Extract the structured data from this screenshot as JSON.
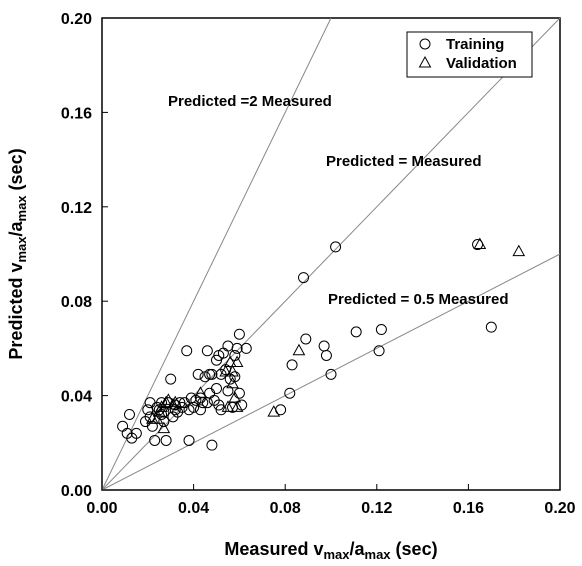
{
  "chart_data": {
    "type": "scatter",
    "xlabel": {
      "main": "Measured v",
      "sub1": "max",
      "mid": "/a",
      "sub2": "max",
      "unit": " (sec)"
    },
    "ylabel": {
      "main": "Predicted v",
      "sub1": "max",
      "mid": "/a",
      "sub2": "max",
      "unit": " (sec)"
    },
    "xlim": [
      0,
      0.2
    ],
    "ylim": [
      0,
      0.2
    ],
    "xticks": [
      "0.00",
      "0.04",
      "0.08",
      "0.12",
      "0.16",
      "0.20"
    ],
    "yticks": [
      "0.00",
      "0.04",
      "0.08",
      "0.12",
      "0.16",
      "0.20"
    ],
    "grid": false,
    "legend": {
      "placement": "top-right"
    },
    "reference_lines": [
      {
        "label": "Predicted =2 Measured",
        "slope": 2
      },
      {
        "label": "Predicted = Measured",
        "slope": 1
      },
      {
        "label": "Predicted = 0.5 Measured",
        "slope": 0.5
      }
    ],
    "series": [
      {
        "name": "Training",
        "marker": "circle",
        "points": [
          [
            0.009,
            0.027
          ],
          [
            0.011,
            0.024
          ],
          [
            0.012,
            0.032
          ],
          [
            0.013,
            0.022
          ],
          [
            0.015,
            0.024
          ],
          [
            0.019,
            0.029
          ],
          [
            0.02,
            0.034
          ],
          [
            0.021,
            0.031
          ],
          [
            0.021,
            0.037
          ],
          [
            0.022,
            0.027
          ],
          [
            0.023,
            0.021
          ],
          [
            0.024,
            0.035
          ],
          [
            0.025,
            0.034
          ],
          [
            0.026,
            0.032
          ],
          [
            0.026,
            0.037
          ],
          [
            0.027,
            0.029
          ],
          [
            0.027,
            0.033
          ],
          [
            0.028,
            0.021
          ],
          [
            0.029,
            0.037
          ],
          [
            0.03,
            0.047
          ],
          [
            0.031,
            0.031
          ],
          [
            0.032,
            0.034
          ],
          [
            0.032,
            0.036
          ],
          [
            0.033,
            0.033
          ],
          [
            0.034,
            0.037
          ],
          [
            0.035,
            0.035
          ],
          [
            0.036,
            0.037
          ],
          [
            0.037,
            0.059
          ],
          [
            0.038,
            0.034
          ],
          [
            0.038,
            0.021
          ],
          [
            0.039,
            0.039
          ],
          [
            0.04,
            0.035
          ],
          [
            0.041,
            0.038
          ],
          [
            0.042,
            0.049
          ],
          [
            0.043,
            0.034
          ],
          [
            0.043,
            0.039
          ],
          [
            0.044,
            0.037
          ],
          [
            0.045,
            0.048
          ],
          [
            0.046,
            0.037
          ],
          [
            0.046,
            0.059
          ],
          [
            0.047,
            0.041
          ],
          [
            0.047,
            0.049
          ],
          [
            0.048,
            0.019
          ],
          [
            0.048,
            0.049
          ],
          [
            0.049,
            0.038
          ],
          [
            0.05,
            0.043
          ],
          [
            0.05,
            0.055
          ],
          [
            0.051,
            0.057
          ],
          [
            0.051,
            0.036
          ],
          [
            0.052,
            0.049
          ],
          [
            0.052,
            0.034
          ],
          [
            0.053,
            0.058
          ],
          [
            0.054,
            0.051
          ],
          [
            0.055,
            0.042
          ],
          [
            0.055,
            0.061
          ],
          [
            0.056,
            0.047
          ],
          [
            0.057,
            0.035
          ],
          [
            0.058,
            0.048
          ],
          [
            0.058,
            0.057
          ],
          [
            0.059,
            0.06
          ],
          [
            0.06,
            0.066
          ],
          [
            0.06,
            0.041
          ],
          [
            0.061,
            0.036
          ],
          [
            0.063,
            0.06
          ],
          [
            0.078,
            0.034
          ],
          [
            0.082,
            0.041
          ],
          [
            0.083,
            0.053
          ],
          [
            0.088,
            0.09
          ],
          [
            0.089,
            0.064
          ],
          [
            0.097,
            0.061
          ],
          [
            0.098,
            0.057
          ],
          [
            0.1,
            0.049
          ],
          [
            0.102,
            0.103
          ],
          [
            0.111,
            0.067
          ],
          [
            0.121,
            0.059
          ],
          [
            0.122,
            0.068
          ],
          [
            0.164,
            0.104
          ],
          [
            0.17,
            0.069
          ]
        ]
      },
      {
        "name": "Validation",
        "marker": "triangle",
        "points": [
          [
            0.022,
            0.03
          ],
          [
            0.024,
            0.03
          ],
          [
            0.025,
            0.033
          ],
          [
            0.026,
            0.035
          ],
          [
            0.027,
            0.026
          ],
          [
            0.028,
            0.037
          ],
          [
            0.029,
            0.038
          ],
          [
            0.031,
            0.036
          ],
          [
            0.032,
            0.037
          ],
          [
            0.043,
            0.041
          ],
          [
            0.054,
            0.05
          ],
          [
            0.055,
            0.035
          ],
          [
            0.056,
            0.054
          ],
          [
            0.057,
            0.045
          ],
          [
            0.057,
            0.05
          ],
          [
            0.058,
            0.039
          ],
          [
            0.059,
            0.054
          ],
          [
            0.059,
            0.035
          ],
          [
            0.075,
            0.033
          ],
          [
            0.086,
            0.059
          ],
          [
            0.165,
            0.104
          ],
          [
            0.182,
            0.101
          ]
        ]
      }
    ]
  }
}
